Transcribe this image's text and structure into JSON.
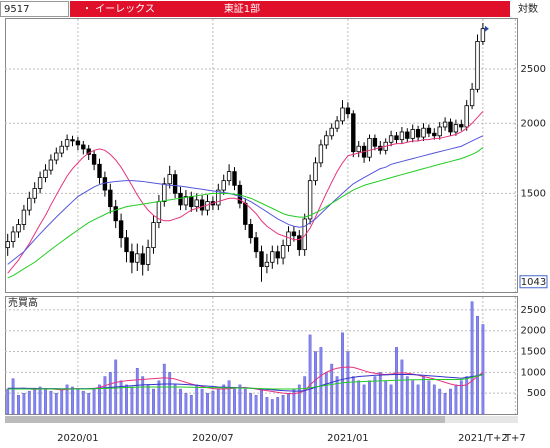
{
  "header": {
    "code": "9517",
    "name": "・ イーレックス",
    "market": "東証1部",
    "scale_label": "対数"
  },
  "chart_data": [
    {
      "type": "candlestick",
      "scale": "log",
      "ylim": [
        1000,
        3070
      ],
      "yticks": [
        1500,
        2000,
        2500
      ],
      "grid": true,
      "min_label": 1043,
      "up_color": "#ffffff",
      "down_color": "#000000",
      "open": [
        1200,
        1230,
        1280,
        1320,
        1400,
        1470,
        1530,
        1600,
        1650,
        1720,
        1770,
        1820,
        1870,
        1860,
        1830,
        1800,
        1760,
        1690,
        1600,
        1520,
        1420,
        1340,
        1250,
        1180,
        1130,
        1170,
        1120,
        1200,
        1330,
        1450,
        1560,
        1620,
        1500,
        1430,
        1480,
        1420,
        1460,
        1400,
        1450,
        1430,
        1520,
        1580,
        1640,
        1550,
        1440,
        1320,
        1250,
        1180,
        1110,
        1130,
        1180,
        1150,
        1210,
        1280,
        1260,
        1190,
        1350,
        1580,
        1700,
        1830,
        1900,
        1960,
        2020,
        2130,
        2080,
        1780,
        1820,
        1740,
        1880,
        1820,
        1790,
        1850,
        1900,
        1870,
        1930,
        1880,
        1950,
        1890,
        1960,
        1920,
        1900,
        1970,
        2010,
        1930,
        1990,
        1970,
        2150,
        2300,
        2800,
        null,
        null,
        null,
        null,
        null,
        null
      ],
      "high": [
        1270,
        1310,
        1350,
        1430,
        1510,
        1570,
        1640,
        1690,
        1760,
        1810,
        1860,
        1910,
        1900,
        1890,
        1860,
        1830,
        1790,
        1730,
        1640,
        1560,
        1460,
        1380,
        1290,
        1220,
        1220,
        1210,
        1240,
        1370,
        1490,
        1600,
        1680,
        1650,
        1540,
        1520,
        1510,
        1500,
        1490,
        1490,
        1480,
        1560,
        1620,
        1690,
        1670,
        1580,
        1470,
        1350,
        1280,
        1210,
        1170,
        1210,
        1210,
        1240,
        1310,
        1310,
        1290,
        1380,
        1620,
        1740,
        1870,
        1940,
        2000,
        2060,
        2200,
        2180,
        2110,
        1860,
        1850,
        1910,
        1910,
        1860,
        1880,
        1940,
        1930,
        1970,
        1960,
        1990,
        1980,
        2000,
        1990,
        1960,
        2010,
        2050,
        2040,
        2030,
        2030,
        2200,
        2360,
        2880,
        3020,
        null,
        null,
        null,
        null,
        null,
        null
      ],
      "low": [
        1160,
        1200,
        1250,
        1290,
        1370,
        1440,
        1500,
        1570,
        1620,
        1690,
        1740,
        1790,
        1820,
        1790,
        1760,
        1720,
        1650,
        1560,
        1480,
        1380,
        1300,
        1200,
        1130,
        1080,
        1090,
        1070,
        1090,
        1170,
        1300,
        1420,
        1530,
        1470,
        1400,
        1400,
        1390,
        1390,
        1370,
        1370,
        1400,
        1400,
        1490,
        1550,
        1520,
        1410,
        1290,
        1220,
        1150,
        1043,
        1080,
        1100,
        1120,
        1120,
        1180,
        1230,
        1160,
        1160,
        1320,
        1550,
        1670,
        1800,
        1870,
        1930,
        1990,
        2040,
        1740,
        1740,
        1700,
        1710,
        1790,
        1760,
        1760,
        1820,
        1840,
        1840,
        1850,
        1850,
        1860,
        1860,
        1890,
        1870,
        1870,
        1940,
        1900,
        1900,
        1940,
        1940,
        2120,
        2270,
        2760,
        null,
        null,
        null,
        null,
        null,
        null
      ],
      "close": [
        1230,
        1280,
        1320,
        1400,
        1470,
        1530,
        1600,
        1650,
        1720,
        1770,
        1820,
        1870,
        1860,
        1830,
        1800,
        1760,
        1690,
        1600,
        1520,
        1420,
        1340,
        1250,
        1180,
        1130,
        1170,
        1120,
        1200,
        1330,
        1450,
        1560,
        1620,
        1500,
        1430,
        1480,
        1420,
        1460,
        1400,
        1450,
        1430,
        1520,
        1580,
        1640,
        1550,
        1440,
        1320,
        1250,
        1180,
        1110,
        1130,
        1180,
        1150,
        1210,
        1280,
        1260,
        1190,
        1350,
        1580,
        1700,
        1830,
        1900,
        1960,
        2020,
        2130,
        2080,
        1780,
        1820,
        1740,
        1880,
        1820,
        1790,
        1850,
        1900,
        1870,
        1930,
        1880,
        1950,
        1890,
        1960,
        1920,
        1900,
        1970,
        2010,
        1930,
        1990,
        1970,
        2150,
        2300,
        2800,
        2950,
        null,
        null,
        null,
        null,
        null,
        null
      ],
      "series": [
        {
          "color": "#e8327d",
          "values": [
            1080,
            1110,
            1140,
            1180,
            1220,
            1270,
            1320,
            1370,
            1430,
            1490,
            1550,
            1610,
            1660,
            1700,
            1740,
            1770,
            1790,
            1800,
            1790,
            1760,
            1720,
            1670,
            1610,
            1550,
            1490,
            1440,
            1400,
            1370,
            1350,
            1340,
            1340,
            1350,
            1360,
            1380,
            1400,
            1410,
            1420,
            1430,
            1440,
            1450,
            1460,
            1470,
            1470,
            1460,
            1440,
            1410,
            1380,
            1340,
            1310,
            1290,
            1270,
            1260,
            1250,
            1240,
            1240,
            1260,
            1300,
            1360,
            1430,
            1500,
            1570,
            1640,
            1700,
            1750,
            1760,
            1770,
            1780,
            1790,
            1800,
            1810,
            1820,
            1830,
            1840,
            1840,
            1850,
            1860,
            1860,
            1870,
            1870,
            1880,
            1880,
            1890,
            1900,
            1910,
            1930,
            1960,
            2000,
            2050,
            2100,
            null,
            null,
            null,
            null,
            null,
            null
          ]
        },
        {
          "color": "#5555dd",
          "values": [
            1120,
            1140,
            1160,
            1180,
            1210,
            1240,
            1270,
            1300,
            1330,
            1360,
            1390,
            1420,
            1450,
            1480,
            1500,
            1520,
            1540,
            1555,
            1565,
            1570,
            1575,
            1578,
            1580,
            1580,
            1578,
            1575,
            1570,
            1565,
            1560,
            1555,
            1550,
            1548,
            1545,
            1540,
            1535,
            1530,
            1525,
            1520,
            1515,
            1510,
            1505,
            1500,
            1490,
            1480,
            1465,
            1450,
            1430,
            1410,
            1390,
            1370,
            1350,
            1335,
            1320,
            1310,
            1305,
            1310,
            1330,
            1350,
            1380,
            1410,
            1440,
            1470,
            1500,
            1530,
            1560,
            1580,
            1600,
            1620,
            1640,
            1660,
            1670,
            1690,
            1700,
            1710,
            1720,
            1730,
            1740,
            1750,
            1760,
            1770,
            1780,
            1790,
            1800,
            1810,
            1820,
            1840,
            1860,
            1880,
            1900,
            null,
            null,
            null,
            null,
            null,
            null
          ]
        },
        {
          "color": "#22cc22",
          "values": [
            1060,
            1070,
            1085,
            1100,
            1115,
            1130,
            1150,
            1170,
            1190,
            1210,
            1230,
            1250,
            1270,
            1290,
            1310,
            1330,
            1345,
            1360,
            1375,
            1390,
            1400,
            1410,
            1420,
            1425,
            1430,
            1435,
            1440,
            1445,
            1450,
            1455,
            1460,
            1465,
            1470,
            1475,
            1480,
            1485,
            1490,
            1495,
            1500,
            1500,
            1500,
            1498,
            1495,
            1490,
            1480,
            1470,
            1455,
            1440,
            1425,
            1410,
            1395,
            1380,
            1370,
            1365,
            1360,
            1360,
            1370,
            1385,
            1400,
            1420,
            1440,
            1460,
            1480,
            1500,
            1520,
            1535,
            1550,
            1560,
            1570,
            1580,
            1590,
            1600,
            1610,
            1620,
            1630,
            1640,
            1650,
            1660,
            1670,
            1680,
            1690,
            1700,
            1710,
            1720,
            1730,
            1745,
            1760,
            1780,
            1810,
            null,
            null,
            null,
            null,
            null,
            null
          ]
        }
      ]
    },
    {
      "type": "bar",
      "title": "売買高",
      "color": "#8585f2",
      "ylim": [
        0,
        2810
      ],
      "yticks": [
        500,
        1000,
        1500,
        2000,
        2500
      ],
      "grid": true,
      "categories": [
        null,
        null,
        null,
        null,
        null,
        null,
        null,
        null,
        null,
        null,
        null,
        null,
        null,
        "2020/01",
        null,
        null,
        null,
        null,
        null,
        null,
        null,
        null,
        null,
        null,
        null,
        null,
        null,
        null,
        null,
        null,
        null,
        null,
        null,
        null,
        null,
        null,
        null,
        null,
        "2020/07",
        null,
        null,
        null,
        null,
        null,
        null,
        null,
        null,
        null,
        null,
        null,
        null,
        null,
        null,
        null,
        null,
        null,
        null,
        null,
        null,
        null,
        null,
        null,
        null,
        "2021/01",
        null,
        null,
        null,
        null,
        null,
        null,
        null,
        null,
        null,
        null,
        null,
        null,
        null,
        null,
        null,
        null,
        null,
        null,
        null,
        null,
        null,
        null,
        null,
        null,
        "2021/T+2",
        null,
        null,
        null,
        null,
        null,
        "T+7"
      ],
      "values": [
        600,
        850,
        450,
        500,
        550,
        600,
        650,
        600,
        550,
        500,
        600,
        700,
        650,
        600,
        550,
        500,
        600,
        700,
        900,
        1000,
        1300,
        800,
        700,
        650,
        1100,
        900,
        700,
        600,
        800,
        1200,
        1000,
        700,
        600,
        500,
        450,
        700,
        600,
        500,
        550,
        600,
        700,
        800,
        600,
        700,
        600,
        500,
        450,
        600,
        400,
        350,
        400,
        450,
        500,
        600,
        700,
        900,
        1900,
        1500,
        1600,
        1000,
        1200,
        900,
        1950,
        1500,
        900,
        800,
        700,
        800,
        900,
        1000,
        800,
        700,
        1600,
        1300,
        900,
        800,
        700,
        900,
        800,
        700,
        600,
        500,
        600,
        700,
        800,
        900,
        2700,
        2350,
        2150,
        null,
        null,
        null,
        null,
        null,
        null
      ],
      "series": [
        {
          "color": "#e8327d",
          "values": [
            600,
            600,
            610,
            620,
            600,
            590,
            600,
            610,
            600,
            590,
            580,
            590,
            600,
            610,
            600,
            600,
            610,
            640,
            680,
            720,
            760,
            780,
            800,
            810,
            820,
            830,
            840,
            850,
            860,
            870,
            860,
            840,
            800,
            760,
            720,
            690,
            660,
            630,
            610,
            600,
            600,
            610,
            620,
            630,
            640,
            620,
            600,
            580,
            560,
            540,
            520,
            500,
            490,
            490,
            510,
            560,
            700,
            820,
            920,
            1000,
            1060,
            1100,
            1120,
            1130,
            1120,
            1080,
            1040,
            1000,
            980,
            960,
            950,
            960,
            980,
            990,
            980,
            960,
            930,
            900,
            870,
            840,
            800,
            760,
            720,
            690,
            680,
            700,
            800,
            900,
            1000,
            null,
            null,
            null,
            null,
            null,
            null
          ]
        },
        {
          "color": "#3333cc",
          "values": [
            620,
            620,
            620,
            620,
            615,
            615,
            610,
            610,
            610,
            610,
            605,
            605,
            605,
            605,
            610,
            610,
            615,
            620,
            630,
            640,
            650,
            660,
            670,
            680,
            690,
            700,
            705,
            710,
            715,
            720,
            720,
            720,
            715,
            710,
            700,
            690,
            680,
            670,
            660,
            650,
            645,
            640,
            635,
            630,
            625,
            620,
            610,
            600,
            590,
            580,
            570,
            560,
            555,
            550,
            550,
            560,
            600,
            640,
            680,
            720,
            760,
            800,
            830,
            860,
            880,
            900,
            910,
            920,
            930,
            935,
            940,
            945,
            950,
            950,
            950,
            945,
            940,
            930,
            920,
            910,
            900,
            890,
            880,
            870,
            860,
            880,
            900,
            920,
            950,
            null,
            null,
            null,
            null,
            null,
            null
          ]
        },
        {
          "color": "#22cc22",
          "values": [
            600,
            600,
            600,
            600,
            600,
            600,
            600,
            600,
            600,
            600,
            600,
            600,
            600,
            600,
            600,
            600,
            605,
            610,
            615,
            620,
            625,
            630,
            635,
            640,
            645,
            650,
            650,
            650,
            650,
            650,
            650,
            650,
            648,
            646,
            644,
            640,
            638,
            636,
            634,
            632,
            630,
            628,
            626,
            624,
            622,
            620,
            615,
            610,
            605,
            600,
            600,
            600,
            600,
            600,
            605,
            610,
            630,
            650,
            670,
            690,
            710,
            730,
            750,
            760,
            770,
            775,
            780,
            785,
            790,
            795,
            800,
            805,
            810,
            815,
            820,
            822,
            824,
            826,
            828,
            830,
            830,
            830,
            830,
            830,
            830,
            850,
            880,
            910,
            940,
            null,
            null,
            null,
            null,
            null,
            null
          ]
        }
      ]
    }
  ]
}
